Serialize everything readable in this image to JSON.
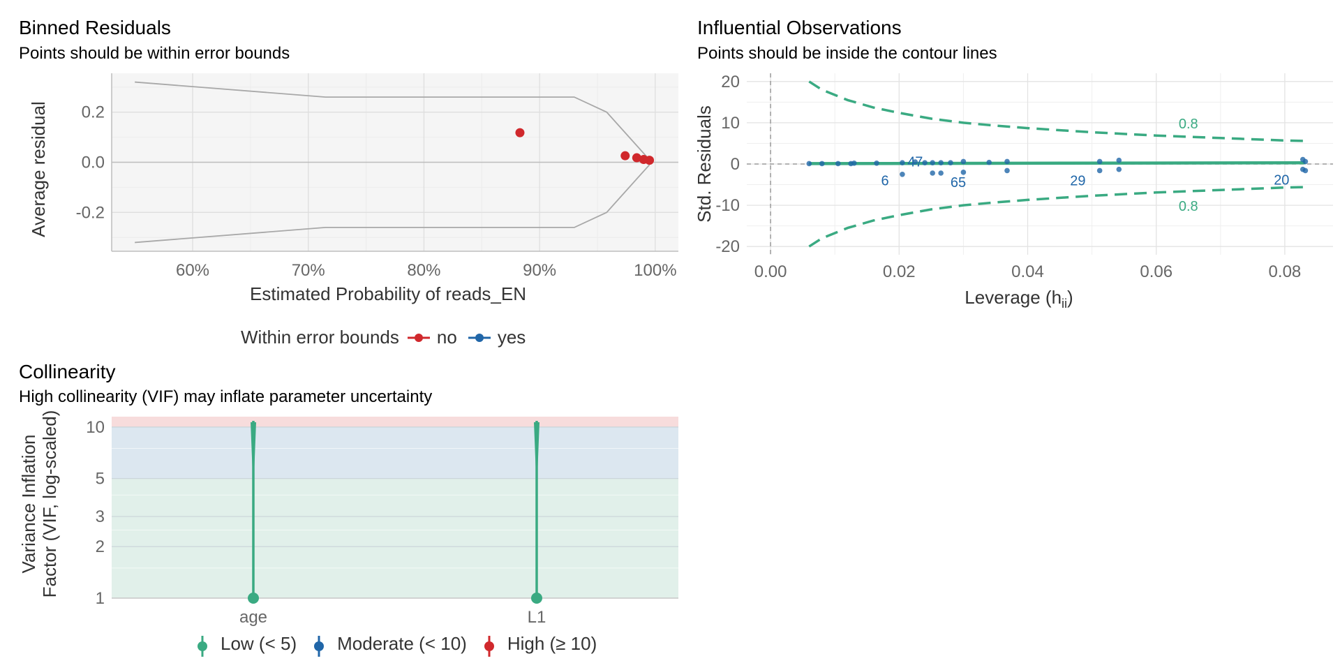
{
  "panels": {
    "binned": {
      "title": "Binned Residuals",
      "subtitle": "Points should be within error bounds",
      "legend_title": "Within error bounds",
      "legend_items": [
        "no",
        "yes"
      ]
    },
    "influential": {
      "title": "Influential Observations",
      "subtitle": "Points should be inside the contour lines"
    },
    "collinearity": {
      "title": "Collinearity",
      "subtitle": "High collinearity (VIF) may inflate parameter uncertainty",
      "legend_items": [
        "Low (< 5)",
        "Moderate (< 10)",
        "High (≥ 10)"
      ]
    }
  },
  "colors": {
    "red": "#d0282c",
    "blue": "#2066a8",
    "green": "#3aaa82",
    "panel_bg": "#f5f5f5",
    "grid": "#e3e3e3",
    "axis_text": "#666666",
    "band_low": "#e1f0ea",
    "band_moderate": "#dce7f0",
    "band_high": "#f7dcdc"
  },
  "chart_data": [
    {
      "type": "scatter",
      "name": "binned_residuals",
      "xlabel": "Estimated Probability of reads_EN",
      "ylabel": "Average residual",
      "xlim": [
        0.53,
        1.02
      ],
      "ylim": [
        -0.355,
        0.355
      ],
      "xticks": [
        0.6,
        0.7,
        0.8,
        0.9,
        1.0
      ],
      "xtick_labels": [
        "60%",
        "70%",
        "80%",
        "90%",
        "100%"
      ],
      "yticks": [
        -0.2,
        0.0,
        0.2
      ],
      "ytick_labels": [
        "-0.2",
        "0.0",
        "0.2"
      ],
      "grid": true,
      "legend_position": "bottom",
      "bounds_upper": [
        [
          0.55,
          0.32
        ],
        [
          0.715,
          0.26
        ],
        [
          0.816,
          0.26
        ],
        [
          0.93,
          0.26
        ],
        [
          0.958,
          0.2
        ],
        [
          0.995,
          0.01
        ]
      ],
      "bounds_lower": [
        [
          0.55,
          -0.32
        ],
        [
          0.715,
          -0.26
        ],
        [
          0.816,
          -0.26
        ],
        [
          0.93,
          -0.26
        ],
        [
          0.958,
          -0.2
        ],
        [
          0.995,
          -0.01
        ]
      ],
      "points": [
        {
          "x": 0.883,
          "y": 0.118,
          "within": "no"
        },
        {
          "x": 0.974,
          "y": 0.026,
          "within": "no"
        },
        {
          "x": 0.984,
          "y": 0.018,
          "within": "no"
        },
        {
          "x": 0.99,
          "y": 0.011,
          "within": "no"
        },
        {
          "x": 0.995,
          "y": 0.008,
          "within": "no"
        }
      ]
    },
    {
      "type": "scatter",
      "name": "influential_observations",
      "xlabel": "Leverage (h",
      "xlabel_sub": "ii",
      "xlabel_end": ")",
      "ylabel": "Std. Residuals",
      "xlim": [
        -0.0037,
        0.0875
      ],
      "ylim": [
        -22,
        22
      ],
      "xticks": [
        0.0,
        0.02,
        0.04,
        0.06,
        0.08
      ],
      "xtick_labels": [
        "0.00",
        "0.02",
        "0.04",
        "0.06",
        "0.08"
      ],
      "yticks": [
        -20,
        -10,
        0,
        10,
        20
      ],
      "ytick_labels": [
        "-20",
        "-10",
        "0",
        "10",
        "20"
      ],
      "grid": true,
      "contour_label": "0.8",
      "contour": [
        [
          0.006,
          20
        ],
        [
          0.008,
          18
        ],
        [
          0.012,
          15.5
        ],
        [
          0.016,
          13.7
        ],
        [
          0.02,
          12.4
        ],
        [
          0.025,
          11
        ],
        [
          0.03,
          10
        ],
        [
          0.035,
          9.3
        ],
        [
          0.04,
          8.7
        ],
        [
          0.05,
          7.7
        ],
        [
          0.06,
          6.9
        ],
        [
          0.07,
          6.3
        ],
        [
          0.08,
          5.7
        ],
        [
          0.083,
          5.6
        ]
      ],
      "contour_label_pos": [
        0.065,
        10
      ],
      "points": [
        {
          "x": 0.006,
          "y": 0.1
        },
        {
          "x": 0.008,
          "y": 0.1
        },
        {
          "x": 0.0105,
          "y": 0.1
        },
        {
          "x": 0.0125,
          "y": 0.1
        },
        {
          "x": 0.013,
          "y": 0.2
        },
        {
          "x": 0.0165,
          "y": 0.2
        },
        {
          "x": 0.0205,
          "y": 0.3
        },
        {
          "x": 0.0205,
          "y": -2.5
        },
        {
          "x": 0.0225,
          "y": 0.5
        },
        {
          "x": 0.024,
          "y": 0.3
        },
        {
          "x": 0.0252,
          "y": 0.3
        },
        {
          "x": 0.0252,
          "y": -2.2
        },
        {
          "x": 0.0265,
          "y": 0.3
        },
        {
          "x": 0.0265,
          "y": -2.2
        },
        {
          "x": 0.028,
          "y": 0.3
        },
        {
          "x": 0.03,
          "y": 0.6
        },
        {
          "x": 0.03,
          "y": -2.0
        },
        {
          "x": 0.034,
          "y": 0.4
        },
        {
          "x": 0.0368,
          "y": 0.6
        },
        {
          "x": 0.0368,
          "y": -1.6
        },
        {
          "x": 0.0512,
          "y": 0.6
        },
        {
          "x": 0.0512,
          "y": -1.6
        },
        {
          "x": 0.0542,
          "y": 0.9
        },
        {
          "x": 0.0542,
          "y": -1.3
        },
        {
          "x": 0.0828,
          "y": 1.1
        },
        {
          "x": 0.0832,
          "y": 0.6
        },
        {
          "x": 0.0828,
          "y": -1.3
        },
        {
          "x": 0.0832,
          "y": -1.6
        }
      ],
      "point_labels": [
        {
          "text": "47",
          "x": 0.0225,
          "y": 0.8
        },
        {
          "text": "6",
          "x": 0.0178,
          "y": -3.8
        },
        {
          "text": "65",
          "x": 0.0292,
          "y": -4.2
        },
        {
          "text": "29",
          "x": 0.0478,
          "y": -3.8
        },
        {
          "text": "20",
          "x": 0.0795,
          "y": -3.6
        }
      ]
    },
    {
      "type": "bar",
      "name": "collinearity",
      "ylabel": "Variance Inflation Factor (VIF, log-scaled)",
      "ylabel_lines": [
        "Variance Inflation",
        "Factor (VIF, log-scaled)"
      ],
      "categories": [
        "age",
        "L1"
      ],
      "yscale": "log",
      "ylim": [
        1,
        11.5
      ],
      "yticks": [
        1,
        2,
        3,
        5,
        10
      ],
      "ytick_labels": [
        "1",
        "2",
        "3",
        "5",
        "10"
      ],
      "bands": [
        {
          "from": 1,
          "to": 5,
          "level": "Low"
        },
        {
          "from": 5,
          "to": 10,
          "level": "Moderate"
        },
        {
          "from": 10,
          "to": 11.5,
          "level": "High"
        }
      ],
      "grid": true,
      "legend_position": "bottom",
      "values": [
        {
          "term": "age",
          "vif": 1.0,
          "ci_high": 11.5,
          "level": "Low"
        },
        {
          "term": "L1",
          "vif": 1.0,
          "ci_high": 11.5,
          "level": "Low"
        }
      ]
    }
  ]
}
